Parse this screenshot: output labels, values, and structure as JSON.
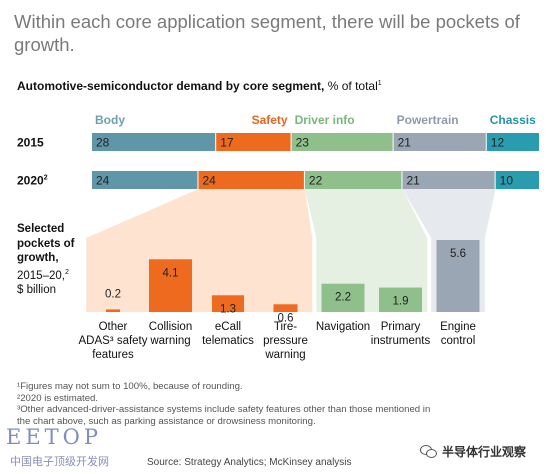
{
  "headline": "Within each core application segment, there will be pockets of growth.",
  "subtitle_bold": "Automotive-semiconductor demand by core segment,",
  "subtitle_rest": " % of total",
  "subtitle_sup": "1",
  "colors": {
    "body": "#5f97a8",
    "safety": "#ee6a1f",
    "driver_info": "#8fbf8a",
    "powertrain": "#9aa6b3",
    "chassis": "#2a9cb0",
    "body_label": "#6e9fb0",
    "safety_label": "#e8631c",
    "driver_info_label": "#7cb57a",
    "powertrain_label": "#8f9aa8",
    "chassis_label": "#1f95aa"
  },
  "chart_data": [
    {
      "type": "bar",
      "orientation": "horizontal-stacked",
      "title": "Automotive-semiconductor demand by core segment, % of total",
      "categories": [
        "2015",
        "2020"
      ],
      "category_labels": [
        "2015",
        "2020"
      ],
      "category_sups": [
        "",
        "2"
      ],
      "series": [
        {
          "name": "Body",
          "values": [
            28,
            24
          ]
        },
        {
          "name": "Safety",
          "values": [
            17,
            24
          ]
        },
        {
          "name": "Driver info",
          "values": [
            23,
            22
          ]
        },
        {
          "name": "Powertrain",
          "values": [
            21,
            21
          ]
        },
        {
          "name": "Chassis",
          "values": [
            12,
            10
          ]
        }
      ]
    },
    {
      "type": "bar",
      "title": "Selected pockets of growth, 2015–20, $ billion",
      "categories": [
        [
          "Other",
          "ADAS³ safety",
          "features"
        ],
        [
          "Collision",
          "warning"
        ],
        [
          "eCall",
          "telematics"
        ],
        [
          "Tire-",
          "pressure",
          "warning"
        ],
        [
          "Navigation"
        ],
        [
          "Primary",
          "instruments"
        ],
        [
          "Engine",
          "control"
        ]
      ],
      "segments": [
        "Safety",
        "Safety",
        "Safety",
        "Safety",
        "Driver info",
        "Driver info",
        "Powertrain"
      ],
      "values": [
        0.2,
        4.1,
        1.3,
        0.6,
        2.2,
        1.9,
        5.6
      ],
      "value_labels": [
        "0.2",
        "4.1",
        "1.3",
        "0.6",
        "2.2",
        "1.9",
        "5.6"
      ]
    }
  ],
  "side_label": {
    "line1": "Selected",
    "line2": "pockets of",
    "line3": "growth,",
    "line4": "2015–20,",
    "line4_sup": "2",
    "line5": "$ billion"
  },
  "footnotes": [
    "¹Figures may not sum to 100%, because of rounding.",
    "²2020 is estimated.",
    "³Other advanced-driver-assistance systems include safety features other than those mentioned in",
    "the chart above, such as parking assistance or drowsiness monitoring."
  ],
  "source": "Source: Strategy Analytics; McKinsey analysis",
  "watermark": {
    "eetop": "EETOP",
    "cn_site": "中国电子顶级开发网",
    "wechat_account": "半导体行业观察"
  }
}
